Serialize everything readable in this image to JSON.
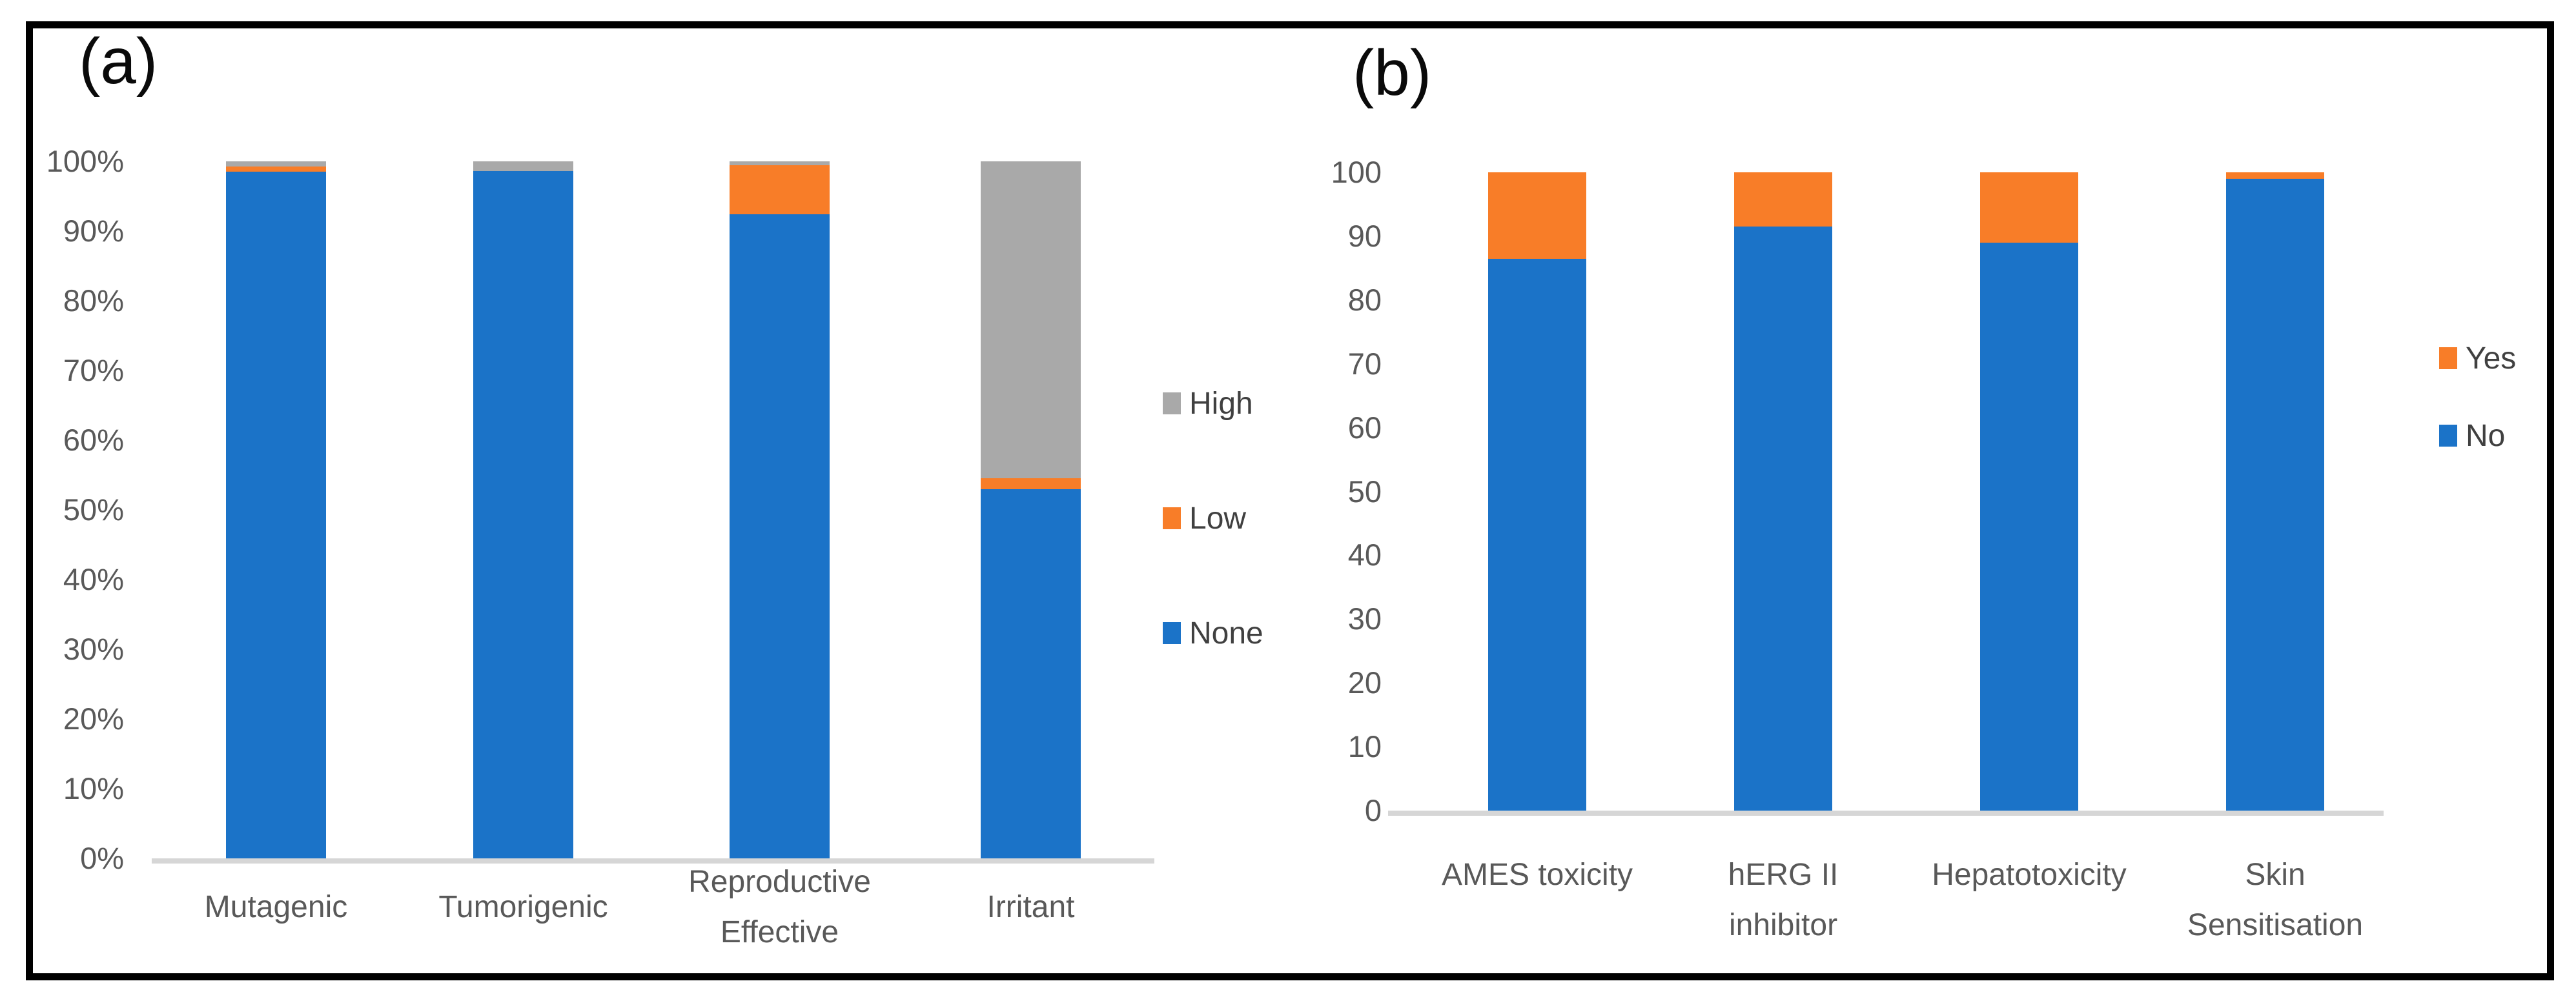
{
  "panels": [
    {
      "label": "(a)"
    },
    {
      "label": "(b)"
    }
  ],
  "colors": {
    "background": "#FFFFFF",
    "border": "#000000",
    "blue": "#1B73C8",
    "orange": "#F87D28",
    "gray": "#A9A9A9",
    "axis_line": "#D6D6D6",
    "tick_text": "#595959",
    "category_text": "#595959",
    "legend_text": "#404040"
  },
  "chart_data": [
    {
      "type": "bar",
      "subtype": "stacked-percent-column",
      "title": "(a)",
      "categories": [
        "Mutagenic",
        "Tumorigenic",
        "Reproductive Effective",
        "Irritant"
      ],
      "category_lines": [
        [
          "Mutagenic"
        ],
        [
          "Tumorigenic"
        ],
        [
          "Reproductive",
          "Effective"
        ],
        [
          "Irritant"
        ]
      ],
      "series": [
        {
          "name": "None",
          "color": "#1B73C8",
          "values": [
            98.5,
            98.6,
            92.4,
            53.0
          ]
        },
        {
          "name": "Low",
          "color": "#F87D28",
          "values": [
            0.8,
            0,
            7.0,
            1.5
          ]
        },
        {
          "name": "High",
          "color": "#A9A9A9",
          "values": [
            0.7,
            1.4,
            0.6,
            45.5
          ]
        }
      ],
      "legend": [
        "High",
        "Low",
        "None"
      ],
      "legend_position": "right",
      "yticks": [
        "100%",
        "90%",
        "80%",
        "70%",
        "60%",
        "50%",
        "40%",
        "30%",
        "20%",
        "10%",
        "0%"
      ],
      "ylim": [
        0,
        100
      ],
      "grid": false,
      "xlabel": "",
      "ylabel": ""
    },
    {
      "type": "bar",
      "subtype": "stacked-column",
      "title": "(b)",
      "categories": [
        "AMES toxicity",
        "hERG II inhibitor",
        "Hepatotoxicity",
        "Skin Sensitisation"
      ],
      "category_lines": [
        [
          "AMES toxicity"
        ],
        [
          "hERG II",
          "inhibitor"
        ],
        [
          "Hepatotoxicity"
        ],
        [
          "Skin",
          "Sensitisation"
        ]
      ],
      "series": [
        {
          "name": "No",
          "color": "#1B73C8",
          "values": [
            86.5,
            91.5,
            89.0,
            99.0
          ]
        },
        {
          "name": "Yes",
          "color": "#F87D28",
          "values": [
            13.5,
            8.5,
            11.0,
            1.0
          ]
        }
      ],
      "legend": [
        "Yes",
        "No"
      ],
      "legend_position": "right",
      "yticks": [
        "100",
        "90",
        "80",
        "70",
        "60",
        "50",
        "40",
        "30",
        "20",
        "10",
        "0"
      ],
      "ylim": [
        0,
        100
      ],
      "grid": false,
      "xlabel": "",
      "ylabel": ""
    }
  ]
}
